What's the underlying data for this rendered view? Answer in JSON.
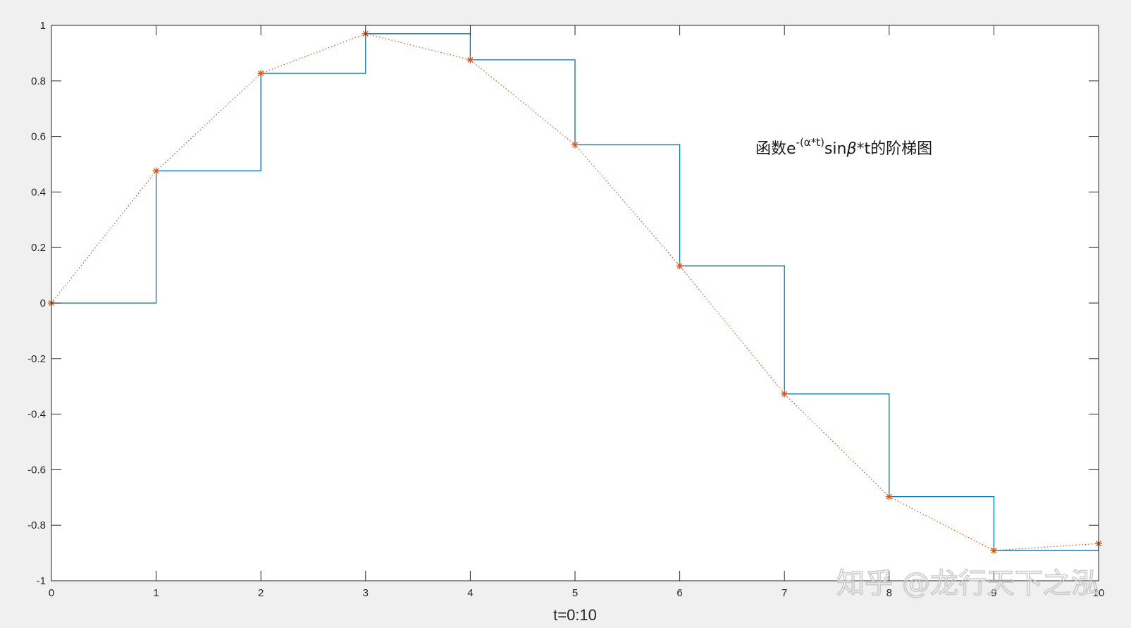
{
  "chart_data": {
    "type": "line",
    "x": [
      0,
      1,
      2,
      3,
      4,
      5,
      6,
      7,
      8,
      9,
      10
    ],
    "xlabel": "t=0:10",
    "ylabel": "",
    "xlim": [
      0,
      10
    ],
    "ylim": [
      -1,
      1
    ],
    "xticks": [
      "0",
      "1",
      "2",
      "3",
      "4",
      "5",
      "6",
      "7",
      "8",
      "9",
      "10"
    ],
    "yticks": [
      "-1",
      "-0.8",
      "-0.6",
      "-0.4",
      "-0.2",
      "0",
      "0.2",
      "0.4",
      "0.6",
      "0.8",
      "1"
    ],
    "grid": false,
    "series": [
      {
        "style": "stairs",
        "color": "#0072BD",
        "values": [
          0,
          0.476,
          0.827,
          0.97,
          0.876,
          0.57,
          0.134,
          -0.327,
          -0.697,
          -0.891,
          -0.866
        ]
      },
      {
        "style": "dotted-line-star-markers",
        "color": "#D95319",
        "values": [
          0,
          0.476,
          0.827,
          0.97,
          0.876,
          0.57,
          0.134,
          -0.327,
          -0.697,
          -0.891,
          -0.866
        ]
      }
    ],
    "annotation": {
      "prefix": "函数e",
      "superscript": "-(α*t)",
      "mid": "sin",
      "beta": "β",
      "suffix": "*t的阶梯图"
    }
  },
  "watermark": {
    "text": "知乎 @龙行天下之泓"
  }
}
